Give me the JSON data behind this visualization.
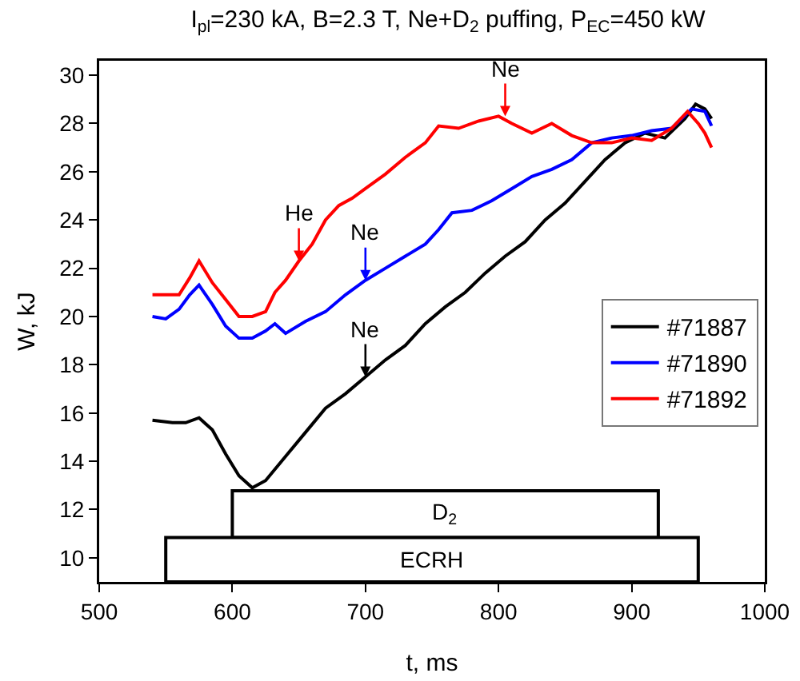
{
  "chart_data": {
    "type": "line",
    "title": "I$_{pl}$=230 kA, B=2.3 T, Ne+D$_{2}$ puffing, P$_{EC}$=450 kW",
    "xlabel": "t, ms",
    "ylabel": "W, kJ",
    "xlim": [
      500,
      1000
    ],
    "xticks": [
      500,
      600,
      700,
      800,
      900,
      1000
    ],
    "ylim": [
      9,
      30.6
    ],
    "yticks": [
      10,
      12,
      14,
      16,
      18,
      20,
      22,
      24,
      26,
      28,
      30
    ],
    "grid": false,
    "legend": "right",
    "marker": "none",
    "line_style": "solid",
    "series": [
      {
        "name": "#71887",
        "color": "#000000",
        "x": [
          540,
          555,
          565,
          575,
          585,
          595,
          605,
          615,
          625,
          640,
          655,
          670,
          685,
          700,
          715,
          730,
          745,
          760,
          775,
          790,
          805,
          820,
          835,
          850,
          865,
          880,
          895,
          910,
          925,
          940,
          948,
          955,
          960
        ],
        "values": [
          15.7,
          15.6,
          15.6,
          15.8,
          15.3,
          14.3,
          13.4,
          12.9,
          13.2,
          14.2,
          15.2,
          16.2,
          16.8,
          17.5,
          18.2,
          18.8,
          19.7,
          20.4,
          21.0,
          21.8,
          22.5,
          23.1,
          24.0,
          24.7,
          25.6,
          26.5,
          27.2,
          27.6,
          27.4,
          28.2,
          28.8,
          28.6,
          28.2
        ]
      },
      {
        "name": "#71890",
        "color": "#0000ff",
        "x": [
          540,
          550,
          560,
          568,
          575,
          585,
          595,
          605,
          615,
          625,
          632,
          640,
          655,
          670,
          685,
          700,
          715,
          730,
          745,
          755,
          765,
          780,
          795,
          810,
          825,
          840,
          855,
          870,
          885,
          900,
          915,
          930,
          945,
          955,
          960
        ],
        "values": [
          20.0,
          19.9,
          20.3,
          20.9,
          21.3,
          20.5,
          19.6,
          19.1,
          19.1,
          19.4,
          19.7,
          19.3,
          19.8,
          20.2,
          20.9,
          21.5,
          22.0,
          22.5,
          23.0,
          23.6,
          24.3,
          24.4,
          24.8,
          25.3,
          25.8,
          26.1,
          26.5,
          27.2,
          27.4,
          27.5,
          27.7,
          27.8,
          28.6,
          28.5,
          27.9
        ]
      },
      {
        "name": "#71892",
        "color": "#ff0000",
        "x": [
          540,
          550,
          560,
          568,
          575,
          585,
          595,
          605,
          615,
          625,
          632,
          640,
          650,
          660,
          670,
          680,
          690,
          700,
          715,
          730,
          745,
          755,
          770,
          785,
          800,
          810,
          825,
          840,
          855,
          870,
          885,
          900,
          915,
          930,
          942,
          950,
          955,
          960
        ],
        "values": [
          20.9,
          20.9,
          20.9,
          21.6,
          22.3,
          21.4,
          20.7,
          20.0,
          20.0,
          20.2,
          21.0,
          21.5,
          22.3,
          23.0,
          24.0,
          24.6,
          24.9,
          25.3,
          25.9,
          26.6,
          27.2,
          27.9,
          27.8,
          28.1,
          28.3,
          28.0,
          27.6,
          28.0,
          27.5,
          27.2,
          27.2,
          27.4,
          27.3,
          27.8,
          28.5,
          28.0,
          27.6,
          27.0
        ]
      }
    ],
    "annotations": [
      {
        "text": "He",
        "x": 650,
        "y": 22.3
      },
      {
        "text": "Ne",
        "x": 700,
        "y": 21.5
      },
      {
        "text": "Ne",
        "x": 700,
        "y": 17.5
      },
      {
        "text": "Ne",
        "x": 805,
        "y": 28.3
      }
    ],
    "bands": [
      {
        "axis": "x",
        "from": 600,
        "to": 920,
        "label": "D$_{2}$"
      },
      {
        "axis": "x",
        "from": 550,
        "to": 950,
        "label": "ECRH"
      }
    ]
  }
}
